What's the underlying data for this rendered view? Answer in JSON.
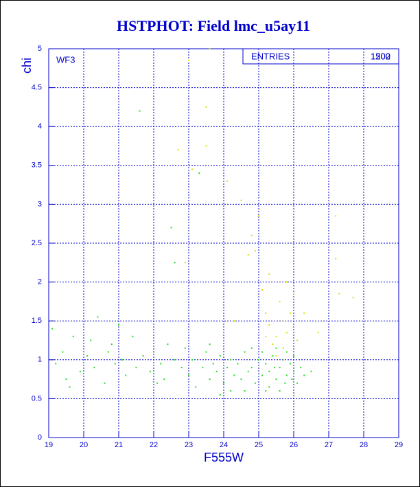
{
  "chart_data": {
    "type": "scatter",
    "title": "HSTPHOT: Field lmc_u5ay11",
    "xlabel": "F555W",
    "ylabel": "chi",
    "annotations": {
      "chip": "WF3",
      "entries_label": "ENTRIES",
      "entries_values": [
        "1500",
        "1202"
      ]
    },
    "xlim": [
      19,
      29
    ],
    "ylim": [
      0,
      5
    ],
    "xticks": [
      19,
      20,
      21,
      22,
      23,
      24,
      25,
      26,
      27,
      28,
      29
    ],
    "yticks": [
      0,
      0.5,
      1,
      1.5,
      2,
      2.5,
      3,
      3.5,
      4,
      4.5,
      5
    ],
    "grid": true,
    "series": [
      {
        "color": "#22dd22",
        "x": [
          19.1,
          19.2,
          19.4,
          19.5,
          19.7,
          19.9,
          20.1,
          20.3,
          20.4,
          20.6,
          20.8,
          20.9,
          21.1,
          21.2,
          21.4,
          21.5,
          21.6,
          21.7,
          21.9,
          22.0,
          22.2,
          22.3,
          22.5,
          22.6,
          22.6,
          22.8,
          22.9,
          23.0,
          23.1,
          23.2,
          23.3,
          23.4,
          23.5,
          23.6,
          23.7,
          23.8,
          23.9,
          24.0,
          24.1,
          24.2,
          24.3,
          24.4,
          24.5,
          24.6,
          24.7,
          24.8,
          24.9,
          25.0,
          25.1,
          25.2,
          25.3,
          25.4,
          25.5,
          25.6,
          25.7,
          25.8,
          25.9,
          26.0,
          26.1,
          26.2,
          25.3,
          25.5,
          25.8,
          26.0,
          25.2,
          25.6,
          24.8,
          24.2,
          23.6,
          22.4,
          21.0,
          20.7,
          19.6,
          26.3,
          25.95,
          25.75,
          25.45,
          25.1,
          24.6,
          23.9,
          22.1,
          20.2,
          26.5
        ],
        "values": [
          1.4,
          0.95,
          1.1,
          0.75,
          1.3,
          0.85,
          1.05,
          0.9,
          1.55,
          0.7,
          1.2,
          0.95,
          1.0,
          0.8,
          1.3,
          0.9,
          4.2,
          1.05,
          0.85,
          1.1,
          0.95,
          0.75,
          2.7,
          2.25,
          1.0,
          0.9,
          1.15,
          0.8,
          1.0,
          0.65,
          3.4,
          0.9,
          1.1,
          0.75,
          0.95,
          0.85,
          1.05,
          0.7,
          0.9,
          1.0,
          0.8,
          0.95,
          0.75,
          1.1,
          0.85,
          0.9,
          0.7,
          1.0,
          0.8,
          0.95,
          0.85,
          1.05,
          0.75,
          0.9,
          1.0,
          0.8,
          0.95,
          0.85,
          0.7,
          0.9,
          0.65,
          1.15,
          1.1,
          1.05,
          0.6,
          0.6,
          1.15,
          0.6,
          1.2,
          1.2,
          1.45,
          1.1,
          0.65,
          0.8,
          0.75,
          0.7,
          0.9,
          1.1,
          0.6,
          0.55,
          0.7,
          1.25,
          0.85
        ]
      },
      {
        "color": "#dddd00",
        "x": [
          25.2,
          25.3,
          25.5,
          25.6,
          25.4,
          25.7,
          25.8,
          25.9,
          26.0,
          25.1,
          25.3,
          24.9,
          24.7,
          24.5,
          24.1,
          23.5,
          23.5,
          23.6,
          22.7,
          23.0,
          26.7,
          27.2,
          27.3,
          27.7,
          27.2,
          25.0,
          24.8,
          25.5,
          25.7,
          26.1,
          26.3,
          25.2,
          23.1,
          22.9,
          24.3,
          25.8
        ],
        "values": [
          1.6,
          1.45,
          1.3,
          1.75,
          1.2,
          1.5,
          1.35,
          1.6,
          1.85,
          1.9,
          2.1,
          2.4,
          2.35,
          3.05,
          3.3,
          3.75,
          4.25,
          5.0,
          3.7,
          4.85,
          1.35,
          2.85,
          1.85,
          1.8,
          2.3,
          2.85,
          2.6,
          1.05,
          1.15,
          1.25,
          1.6,
          1.3,
          3.45,
          2.25,
          1.5,
          2.0
        ]
      }
    ]
  }
}
